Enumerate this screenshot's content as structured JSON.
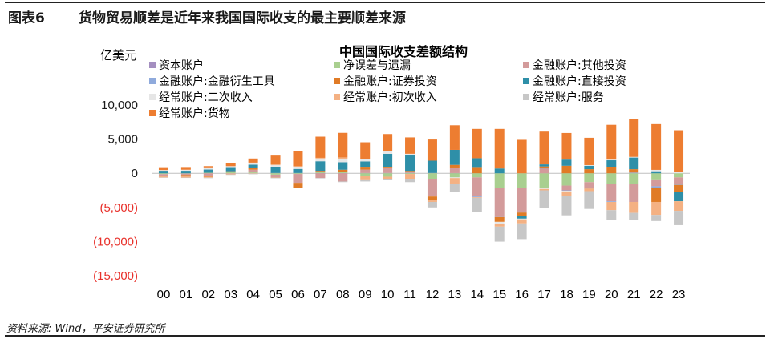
{
  "figure": {
    "label": "图表6",
    "title": "货物贸易顺差是近年来我国国际收支的最主要顺差来源",
    "source": "资料来源: Wind，平安证券研究所"
  },
  "chart_data": {
    "type": "bar",
    "stacked": true,
    "title": "中国国际收支差额结构",
    "ylabel": "亿美元",
    "xlabel": "",
    "ylim": [
      -15000,
      10000
    ],
    "yticks": [
      10000,
      5000,
      0,
      -5000,
      -10000,
      -15000
    ],
    "ytick_labels": [
      "10,000",
      "5,000",
      "0",
      "(5,000)",
      "(10,000)",
      "(15,000)"
    ],
    "negative_tick_color": "#e8302a",
    "legend_position": "top",
    "categories": [
      "00",
      "01",
      "02",
      "03",
      "04",
      "05",
      "06",
      "07",
      "08",
      "09",
      "10",
      "11",
      "12",
      "13",
      "14",
      "15",
      "16",
      "17",
      "18",
      "19",
      "20",
      "21",
      "22",
      "23"
    ],
    "series": [
      {
        "name": "资本账户",
        "color": "#a48fc0",
        "values": [
          0,
          0,
          0,
          0,
          0,
          41,
          40,
          31,
          31,
          39,
          46,
          54,
          43,
          31,
          0,
          0,
          0,
          0,
          0,
          0,
          0,
          0,
          0,
          0
        ]
      },
      {
        "name": "净误差与遗漏",
        "color": "#a9cf8f",
        "values": [
          -119,
          -48,
          78,
          184,
          130,
          -200,
          -100,
          130,
          190,
          -400,
          -500,
          -100,
          -800,
          -600,
          -600,
          -2100,
          -2200,
          -2200,
          -1800,
          -1300,
          -1600,
          -1600,
          -900,
          -600
        ]
      },
      {
        "name": "金融账户:其他投资",
        "color": "#d39b9b",
        "values": [
          -300,
          -200,
          -400,
          -60,
          400,
          -400,
          -1300,
          -700,
          -1200,
          500,
          700,
          100,
          -2600,
          700,
          -2800,
          -4300,
          -3500,
          700,
          -700,
          -900,
          -2500,
          -2600,
          -1000,
          -1000
        ]
      },
      {
        "name": "金融账户:金融衍生工具",
        "color": "#8faadc",
        "values": [
          0,
          0,
          0,
          0,
          0,
          0,
          0,
          0,
          0,
          0,
          0,
          0,
          0,
          0,
          -100,
          -20,
          -50,
          5,
          -60,
          -20,
          -100,
          100,
          -300,
          -100
        ]
      },
      {
        "name": "金融账户:证券投资",
        "color": "#e07b26",
        "values": [
          -40,
          -190,
          -100,
          110,
          200,
          -40,
          -700,
          200,
          300,
          300,
          200,
          200,
          -500,
          500,
          800,
          -700,
          -500,
          300,
          1100,
          600,
          900,
          500,
          -2000,
          -1000
        ]
      },
      {
        "name": "金融账户:直接投资",
        "color": "#2e8fa8",
        "values": [
          370,
          370,
          470,
          490,
          530,
          900,
          600,
          1400,
          1100,
          900,
          1900,
          2300,
          1800,
          2200,
          1400,
          700,
          -400,
          300,
          900,
          500,
          1000,
          1700,
          300,
          -1400
        ]
      },
      {
        "name": "经常账户:二次收入",
        "color": "#e6e6e6",
        "values": [
          100,
          150,
          200,
          260,
          300,
          250,
          300,
          400,
          400,
          300,
          400,
          200,
          0,
          -100,
          0,
          -300,
          -100,
          -100,
          -100,
          100,
          100,
          100,
          200,
          200
        ]
      },
      {
        "name": "经常账户:初次收入",
        "color": "#f4b183",
        "values": [
          -150,
          -190,
          -150,
          -100,
          -50,
          100,
          100,
          100,
          300,
          -500,
          -300,
          -700,
          -300,
          -800,
          -100,
          -400,
          -600,
          -200,
          -600,
          -400,
          -1200,
          -1600,
          -1900,
          -1400
        ]
      },
      {
        "name": "经常账户:服务",
        "color": "#c7c7c7",
        "values": [
          -60,
          -60,
          -70,
          -80,
          -90,
          -90,
          -80,
          -50,
          -100,
          -300,
          -200,
          -500,
          -800,
          -1200,
          -2100,
          -2200,
          -2300,
          -2600,
          -2900,
          -2600,
          -1500,
          -1000,
          -900,
          -2100
        ]
      },
      {
        "name": "经常账户:货物",
        "color": "#ed7d31",
        "values": [
          300,
          280,
          300,
          400,
          600,
          1300,
          2200,
          3100,
          3600,
          2500,
          2500,
          2400,
          3100,
          3600,
          4300,
          5800,
          4900,
          4800,
          3900,
          4000,
          5100,
          5600,
          6700,
          6100
        ]
      }
    ]
  }
}
